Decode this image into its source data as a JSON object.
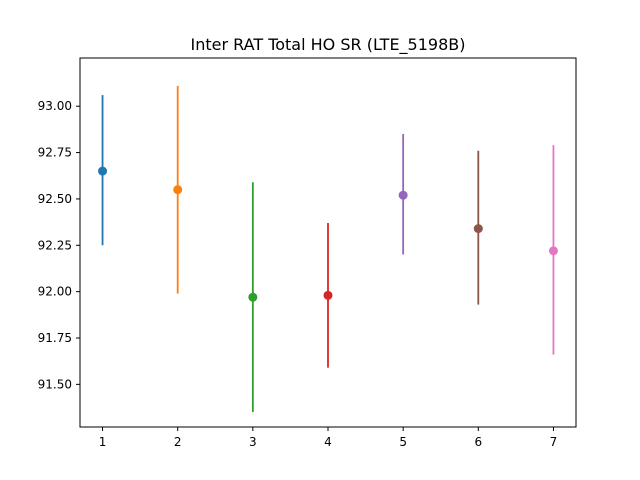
{
  "chart_data": {
    "type": "scatter",
    "title": "Inter RAT Total HO SR (LTE_5198B)",
    "xlabel": "",
    "ylabel": "",
    "xlim": [
      0.7,
      7.3
    ],
    "ylim": [
      91.27,
      93.26
    ],
    "x_ticks": [
      1,
      2,
      3,
      4,
      5,
      6,
      7
    ],
    "y_ticks": [
      91.5,
      91.75,
      92.0,
      92.25,
      92.5,
      92.75,
      93.0
    ],
    "x_tick_labels": [
      "1",
      "2",
      "3",
      "4",
      "5",
      "6",
      "7"
    ],
    "y_tick_labels": [
      "91.50",
      "91.75",
      "92.00",
      "92.25",
      "92.50",
      "92.75",
      "93.00"
    ],
    "grid": false,
    "points": [
      {
        "x": 1,
        "y": 92.65,
        "low": 92.25,
        "high": 93.06,
        "color": "#1f77b4"
      },
      {
        "x": 2,
        "y": 92.55,
        "low": 91.99,
        "high": 93.11,
        "color": "#ff7f0e"
      },
      {
        "x": 3,
        "y": 91.97,
        "low": 91.35,
        "high": 92.59,
        "color": "#2ca02c"
      },
      {
        "x": 4,
        "y": 91.98,
        "low": 91.59,
        "high": 92.37,
        "color": "#d62728"
      },
      {
        "x": 5,
        "y": 92.52,
        "low": 92.2,
        "high": 92.85,
        "color": "#9467bd"
      },
      {
        "x": 6,
        "y": 92.34,
        "low": 91.93,
        "high": 92.76,
        "color": "#8c564b"
      },
      {
        "x": 7,
        "y": 92.22,
        "low": 91.66,
        "high": 92.79,
        "color": "#e377c2"
      }
    ]
  }
}
